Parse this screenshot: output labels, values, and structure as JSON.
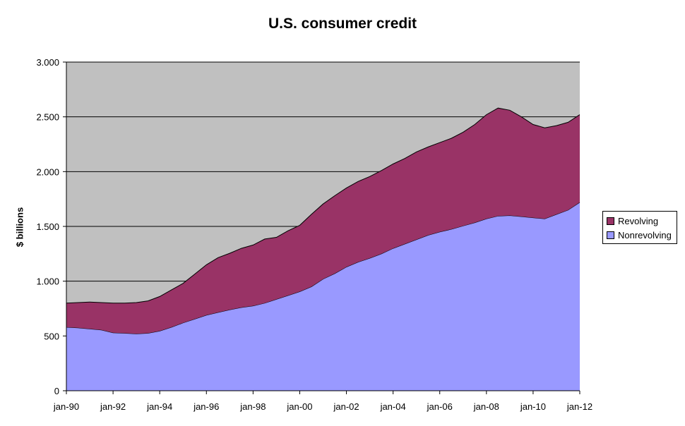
{
  "chart_data": {
    "type": "area",
    "stacked": true,
    "title": "U.S. consumer credit",
    "xlabel": "",
    "ylabel": "$ billions",
    "ylim": [
      0,
      3000
    ],
    "yticks": [
      0,
      500,
      1000,
      1500,
      2000,
      2500,
      3000
    ],
    "ytick_labels": [
      "0",
      "500",
      "1.000",
      "1.500",
      "2.000",
      "2.500",
      "3.000"
    ],
    "xlim": [
      1990,
      2012
    ],
    "xticks": [
      1990,
      1992,
      1994,
      1996,
      1998,
      2000,
      2002,
      2004,
      2006,
      2008,
      2010,
      2012
    ],
    "xtick_labels": [
      "jan-90",
      "jan-92",
      "jan-94",
      "jan-96",
      "jan-98",
      "jan-00",
      "jan-02",
      "jan-04",
      "jan-06",
      "jan-08",
      "jan-10",
      "jan-12"
    ],
    "grid": true,
    "plot_background": "#c0c0c0",
    "legend_position": "right",
    "x": [
      1990,
      1990.5,
      1991,
      1991.5,
      1992,
      1992.5,
      1993,
      1993.5,
      1994,
      1994.5,
      1995,
      1995.5,
      1996,
      1996.5,
      1997,
      1997.5,
      1998,
      1998.5,
      1999,
      1999.5,
      2000,
      2000.5,
      2001,
      2001.5,
      2002,
      2002.5,
      2003,
      2003.5,
      2004,
      2004.5,
      2005,
      2005.5,
      2006,
      2006.5,
      2007,
      2007.5,
      2008,
      2008.5,
      2009,
      2009.5,
      2010,
      2010.5,
      2011,
      2011.5,
      2012
    ],
    "series": [
      {
        "name": "Nonrevolving",
        "color": "#9999ff",
        "values": [
          580,
          575,
          565,
          555,
          530,
          525,
          520,
          525,
          545,
          580,
          620,
          655,
          690,
          715,
          740,
          760,
          775,
          800,
          835,
          870,
          905,
          950,
          1020,
          1070,
          1130,
          1175,
          1210,
          1250,
          1300,
          1340,
          1380,
          1420,
          1450,
          1475,
          1505,
          1535,
          1570,
          1595,
          1600,
          1590,
          1580,
          1570,
          1610,
          1650,
          1720
        ]
      },
      {
        "name": "Revolving",
        "color": "#993366",
        "values": [
          220,
          230,
          245,
          250,
          270,
          275,
          285,
          295,
          315,
          340,
          360,
          410,
          460,
          500,
          515,
          540,
          555,
          585,
          565,
          590,
          605,
          660,
          685,
          710,
          720,
          735,
          745,
          760,
          770,
          780,
          800,
          805,
          815,
          830,
          855,
          895,
          950,
          985,
          960,
          910,
          850,
          830,
          810,
          800,
          800
        ]
      }
    ]
  }
}
